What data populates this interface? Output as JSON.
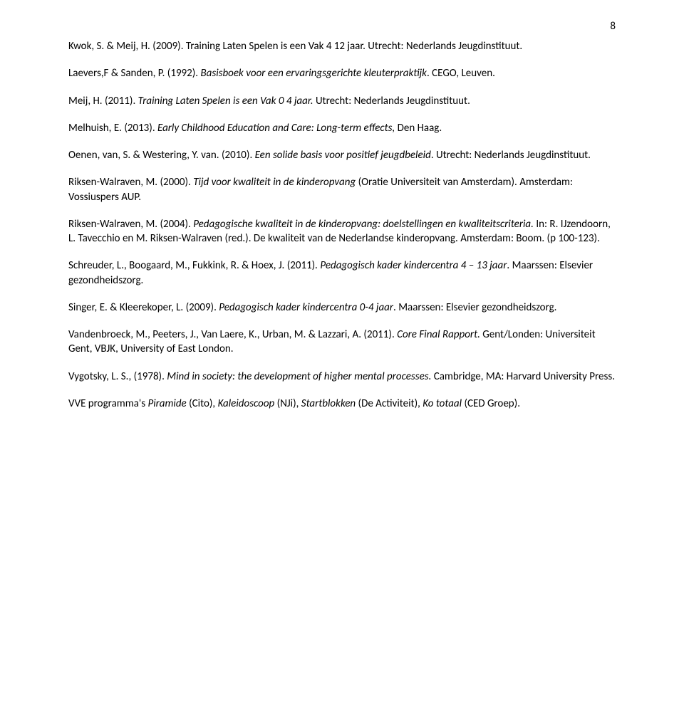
{
  "page_number": "8",
  "entries": [
    {
      "parts": [
        {
          "text": "Kwok, S. & Meij, H. (2009). Training Laten Spelen is een Vak 4 12 jaar. Utrecht: Nederlands Jeugdinstituut.",
          "italic": false
        }
      ]
    },
    {
      "parts": [
        {
          "text": "Laevers,F & Sanden, P. (1992). ",
          "italic": false
        },
        {
          "text": "Basisboek voor een ervaringsgerichte kleuterpraktijk",
          "italic": true
        },
        {
          "text": ". CEGO, Leuven.",
          "italic": false
        }
      ]
    },
    {
      "parts": [
        {
          "text": "Meij, H. (2011). ",
          "italic": false
        },
        {
          "text": "Training Laten Spelen is een Vak 0 4 jaar.",
          "italic": true
        },
        {
          "text": " Utrecht: Nederlands Jeugdinstituut.",
          "italic": false
        }
      ]
    },
    {
      "parts": [
        {
          "text": "Melhuish, E. (2013). ",
          "italic": false
        },
        {
          "text": "Early Childhood Education and Care: Long-term effects, ",
          "italic": true
        },
        {
          "text": "Den Haag.",
          "italic": false
        }
      ]
    },
    {
      "parts": [
        {
          "text": "Oenen, van, S. & Westering, Y. van. (2010). ",
          "italic": false
        },
        {
          "text": "Een solide basis voor positief jeugdbeleid",
          "italic": true
        },
        {
          "text": ". Utrecht: Nederlands Jeugdinstituut.",
          "italic": false
        }
      ]
    },
    {
      "parts": [
        {
          "text": "Riksen-Walraven, M. (2000). ",
          "italic": false
        },
        {
          "text": "Tijd voor kwaliteit in de kinderopvang ",
          "italic": true
        },
        {
          "text": "(Oratie Universiteit van Amsterdam). Amsterdam: Vossiuspers AUP.",
          "italic": false
        }
      ]
    },
    {
      "parts": [
        {
          "text": "Riksen-Walraven, M. (2004). ",
          "italic": false
        },
        {
          "text": "Pedagogische kwaliteit in de kinderopvang: doelstellingen en kwaliteitscriteria. ",
          "italic": true
        },
        {
          "text": "In: R. IJzendoorn, L. Tavecchio en M. Riksen-Walraven (red.). De kwaliteit van de Nederlandse kinderopvang. Amsterdam: Boom. (p 100-123).",
          "italic": false
        }
      ]
    },
    {
      "parts": [
        {
          "text": "Schreuder, L., Boogaard, M., Fukkink, R. & Hoex, J. (2011)",
          "italic": false
        },
        {
          "text": ". Pedagogisch kader kindercentra 4 – 13 jaar",
          "italic": true
        },
        {
          "text": ". Maarssen: Elsevier gezondheidszorg.",
          "italic": false
        }
      ]
    },
    {
      "parts": [
        {
          "text": "Singer, E. & Kleerekoper, L. (2009). ",
          "italic": false
        },
        {
          "text": "Pedagogisch kader kindercentra 0-4 jaar",
          "italic": true
        },
        {
          "text": ". Maarssen: Elsevier gezondheidszorg.",
          "italic": false
        }
      ]
    },
    {
      "parts": [
        {
          "text": "Vandenbroeck, M., Peeters, J., Van Laere, K., Urban, M. & Lazzari, A. (2011). ",
          "italic": false
        },
        {
          "text": "Core Final Rapport. ",
          "italic": true
        },
        {
          "text": "Gent/Londen: Universiteit Gent, VBJK, University of East London.",
          "italic": false
        }
      ]
    },
    {
      "parts": [
        {
          "text": "Vygotsky, L. S., (1978). ",
          "italic": false
        },
        {
          "text": "Mind in society: the development of higher mental processes. ",
          "italic": true
        },
        {
          "text": "Cambridge, MA: Harvard University Press.",
          "italic": false
        }
      ]
    },
    {
      "parts": [
        {
          "text": "VVE programma's ",
          "italic": false
        },
        {
          "text": "Piramide ",
          "italic": true
        },
        {
          "text": "(Cito), ",
          "italic": false
        },
        {
          "text": "Kaleidoscoop ",
          "italic": true
        },
        {
          "text": "(NJi), ",
          "italic": false
        },
        {
          "text": "Startblokken ",
          "italic": true
        },
        {
          "text": "(De Activiteit), ",
          "italic": false
        },
        {
          "text": "Ko totaal ",
          "italic": true
        },
        {
          "text": "(CED Groep).",
          "italic": false
        }
      ]
    }
  ]
}
